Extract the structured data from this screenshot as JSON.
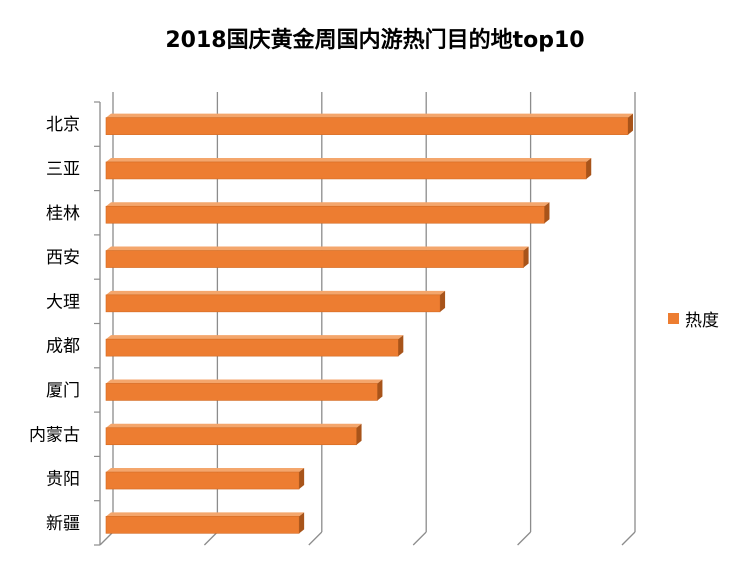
{
  "chart_data": {
    "type": "bar",
    "orientation": "horizontal",
    "style": "3d",
    "title": "2018国庆黄金周国内游热门目的地top10",
    "categories": [
      "北京",
      "三亚",
      "桂林",
      "西安",
      "大理",
      "成都",
      "厦门",
      "内蒙古",
      "贵阳",
      "新疆"
    ],
    "series": [
      {
        "name": "热度",
        "color": "#ED7D31",
        "values": [
          100,
          92,
          84,
          80,
          64,
          56,
          52,
          48,
          37,
          37
        ]
      }
    ],
    "xlim": [
      0,
      100
    ],
    "x_gridlines": [
      0,
      20,
      40,
      60,
      80,
      100
    ],
    "x_tick_labels_shown": false,
    "legend_position": "right",
    "grid": true
  }
}
